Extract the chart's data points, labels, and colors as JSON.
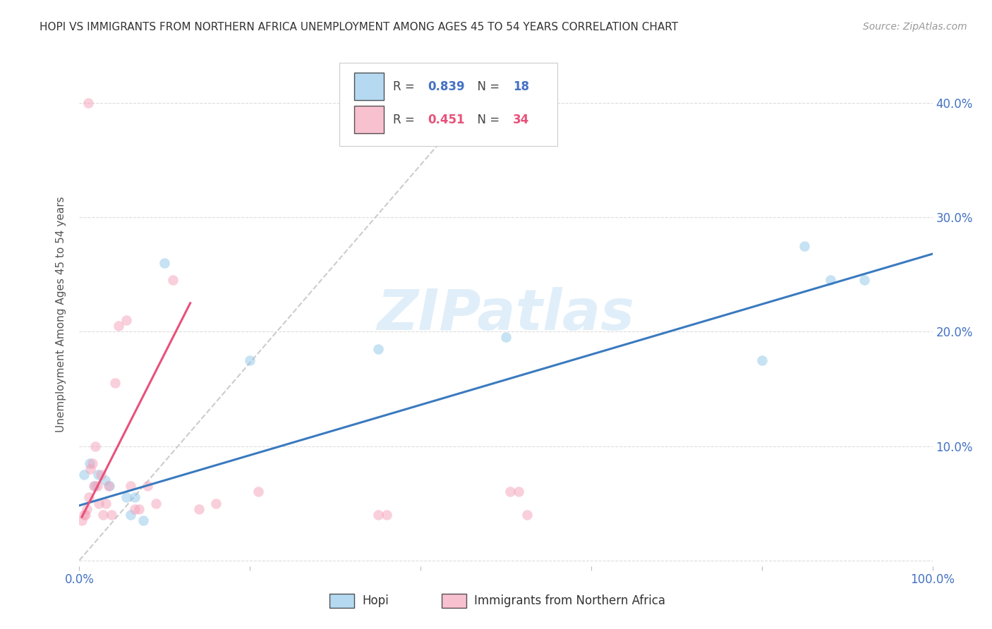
{
  "title": "HOPI VS IMMIGRANTS FROM NORTHERN AFRICA UNEMPLOYMENT AMONG AGES 45 TO 54 YEARS CORRELATION CHART",
  "source": "Source: ZipAtlas.com",
  "ylabel": "Unemployment Among Ages 45 to 54 years",
  "watermark": "ZIPatlas",
  "legend_blue_R": "0.839",
  "legend_blue_N": "18",
  "legend_pink_R": "0.451",
  "legend_pink_N": "34",
  "legend_label_blue": "Hopi",
  "legend_label_pink": "Immigrants from Northern Africa",
  "blue_color": "#8ec6e8",
  "pink_color": "#f4a0b8",
  "blue_line_color": "#3a7abf",
  "pink_line_color": "#e8527a",
  "dashed_line_color": "#cccccc",
  "blue_text_color": "#4472c4",
  "pink_text_color": "#e8527a",
  "tick_color": "#4472c4",
  "grid_color": "#dddddd",
  "title_color": "#333333",
  "source_color": "#999999",
  "ylabel_color": "#555555",
  "watermark_color": "#cce4f5",
  "xlim": [
    0.0,
    1.0
  ],
  "ylim": [
    -0.005,
    0.435
  ],
  "xticks": [
    0.0,
    0.2,
    0.4,
    0.6,
    0.8,
    1.0
  ],
  "xtick_labels": [
    "0.0%",
    "",
    "",
    "",
    "",
    "100.0%"
  ],
  "ytick_vals": [
    0.0,
    0.1,
    0.2,
    0.3,
    0.4
  ],
  "ytick_labels": [
    "",
    "10.0%",
    "20.0%",
    "30.0%",
    "40.0%"
  ],
  "hopi_x": [
    0.005,
    0.012,
    0.018,
    0.022,
    0.03,
    0.035,
    0.055,
    0.065,
    0.075,
    0.1,
    0.2,
    0.35,
    0.5,
    0.8,
    0.85,
    0.88,
    0.92,
    0.06
  ],
  "hopi_y": [
    0.075,
    0.085,
    0.065,
    0.075,
    0.07,
    0.065,
    0.055,
    0.055,
    0.035,
    0.26,
    0.175,
    0.185,
    0.195,
    0.175,
    0.275,
    0.245,
    0.245,
    0.04
  ],
  "pink_x": [
    0.003,
    0.005,
    0.007,
    0.009,
    0.011,
    0.013,
    0.015,
    0.017,
    0.019,
    0.021,
    0.023,
    0.025,
    0.028,
    0.031,
    0.034,
    0.038,
    0.042,
    0.046,
    0.055,
    0.06,
    0.065,
    0.07,
    0.08,
    0.09,
    0.11,
    0.14,
    0.16,
    0.21,
    0.35,
    0.36,
    0.505,
    0.515,
    0.525,
    0.01
  ],
  "pink_y": [
    0.035,
    0.04,
    0.04,
    0.045,
    0.055,
    0.08,
    0.085,
    0.065,
    0.1,
    0.065,
    0.05,
    0.075,
    0.04,
    0.05,
    0.065,
    0.04,
    0.155,
    0.205,
    0.21,
    0.065,
    0.045,
    0.045,
    0.065,
    0.05,
    0.245,
    0.045,
    0.05,
    0.06,
    0.04,
    0.04,
    0.06,
    0.06,
    0.04,
    0.4
  ],
  "blue_line_x": [
    0.0,
    1.0
  ],
  "blue_line_y": [
    0.048,
    0.268
  ],
  "pink_line_x": [
    0.003,
    0.13
  ],
  "pink_line_y": [
    0.038,
    0.225
  ],
  "dash_line_x": [
    0.0,
    0.48
  ],
  "dash_line_y": [
    0.0,
    0.415
  ],
  "marker_size": 110,
  "marker_alpha": 0.5,
  "line_width": 2.2,
  "title_fontsize": 11,
  "source_fontsize": 10,
  "tick_fontsize": 12,
  "ylabel_fontsize": 11,
  "watermark_fontsize": 58,
  "legend_fontsize": 12
}
